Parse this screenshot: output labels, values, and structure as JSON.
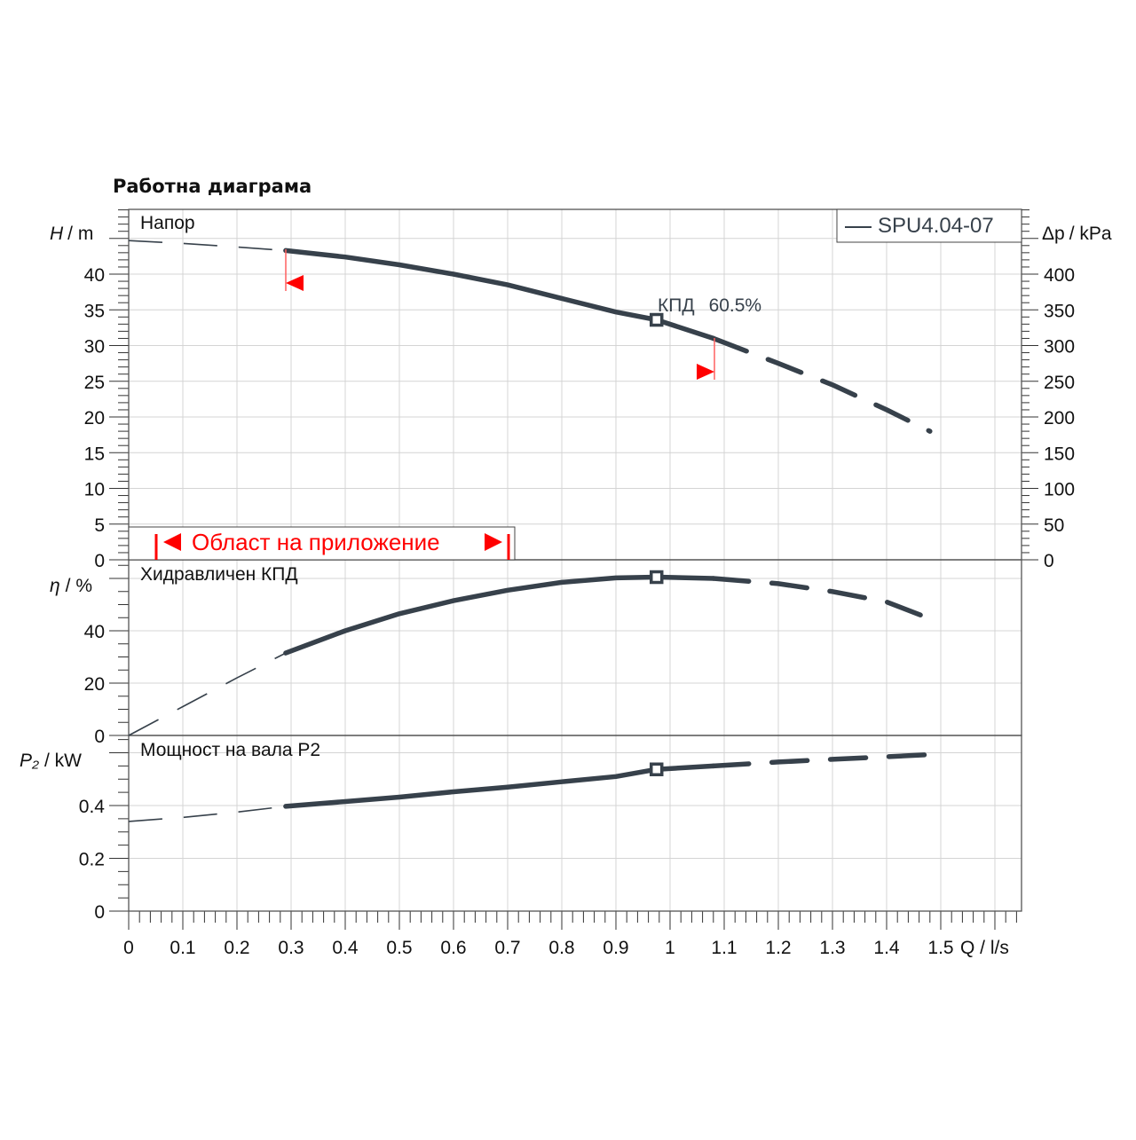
{
  "page": {
    "title": "Работна диаграма"
  },
  "legend": {
    "label": "SPU4.04-07",
    "color": "#37414b"
  },
  "annotations": {
    "efficiency_label": "КПД",
    "efficiency_value": "60.5%",
    "application_range": "Област на приложение",
    "range_color": "#ff0000"
  },
  "axes": {
    "x_label": "Q / l/s",
    "x_ticks": [
      "0",
      "0.1",
      "0.2",
      "0.3",
      "0.4",
      "0.5",
      "0.6",
      "0.7",
      "0.8",
      "0.9",
      "1",
      "1.1",
      "1.2",
      "1.3",
      "1.4",
      "1.5"
    ],
    "head": {
      "title": "Напор",
      "y_label_sym": "H",
      "y_label_unit": "/ m",
      "y_ticks": [
        "0",
        "5",
        "10",
        "15",
        "20",
        "25",
        "30",
        "35",
        "40"
      ],
      "y2_label_sym": "Δp",
      "y2_label_unit": "/ kPa",
      "y2_ticks": [
        "0",
        "50",
        "100",
        "150",
        "200",
        "250",
        "300",
        "350",
        "400"
      ]
    },
    "eff": {
      "title": "Хидравличен КПД",
      "y_label_sym": "η",
      "y_label_unit": "/ %",
      "y_ticks": [
        "0",
        "20",
        "40"
      ]
    },
    "power": {
      "title": "Мощност на вала P2",
      "y_label_sym": "P₂",
      "y_label_unit": "/ kW",
      "y_ticks": [
        "0",
        "0.2",
        "0.4"
      ]
    }
  },
  "chart_data": [
    {
      "type": "line",
      "title": "Напор",
      "xlabel": "Q / l/s",
      "ylabel": "H / m",
      "y2label": "Δp / kPa",
      "xlim": [
        0,
        1.6
      ],
      "ylim": [
        0,
        45
      ],
      "series": [
        {
          "name": "SPU4.04-07 (extrapolated, low)",
          "style": "dashed-thin",
          "x": [
            0,
            0.1,
            0.2,
            0.29
          ],
          "y": [
            44.7,
            44.3,
            43.8,
            43.3
          ]
        },
        {
          "name": "SPU4.04-07",
          "style": "solid",
          "x": [
            0.29,
            0.4,
            0.5,
            0.6,
            0.7,
            0.8,
            0.9,
            0.975,
            1.08
          ],
          "y": [
            43.3,
            42.4,
            41.3,
            40.0,
            38.5,
            36.6,
            34.7,
            33.6,
            31.0
          ]
        },
        {
          "name": "SPU4.04-07 (extrapolated, high)",
          "style": "dashed-thick",
          "x": [
            1.08,
            1.2,
            1.3,
            1.4,
            1.48
          ],
          "y": [
            31.0,
            27.5,
            24.5,
            21.0,
            18.0
          ]
        }
      ],
      "markers": [
        {
          "x": 0.975,
          "y": 33.6,
          "label": "КПД 60.5%"
        }
      ],
      "application_range": [
        0.29,
        1.08
      ]
    },
    {
      "type": "line",
      "title": "Хидравличен КПД",
      "xlabel": "Q / l/s",
      "ylabel": "η / %",
      "xlim": [
        0,
        1.6
      ],
      "ylim": [
        0,
        62
      ],
      "series": [
        {
          "name": "SPU4.04-07 (extrapolated, low)",
          "style": "dashed-thin",
          "x": [
            0,
            0.1,
            0.2,
            0.29
          ],
          "y": [
            0,
            11,
            22,
            31.5
          ]
        },
        {
          "name": "SPU4.04-07",
          "style": "solid",
          "x": [
            0.29,
            0.4,
            0.5,
            0.6,
            0.7,
            0.8,
            0.9,
            0.975,
            1.08
          ],
          "y": [
            31.5,
            40.0,
            46.5,
            51.5,
            55.5,
            58.5,
            60.2,
            60.5,
            60.0
          ]
        },
        {
          "name": "SPU4.04-07 (extrapolated, high)",
          "style": "dashed-thick",
          "x": [
            1.08,
            1.2,
            1.3,
            1.4,
            1.5
          ],
          "y": [
            60.0,
            58.0,
            55.0,
            51.0,
            43.0
          ]
        }
      ],
      "markers": [
        {
          "x": 0.975,
          "y": 60.5
        }
      ]
    },
    {
      "type": "line",
      "title": "Мощност на вала P2",
      "xlabel": "Q / l/s",
      "ylabel": "P₂ / kW",
      "xlim": [
        0,
        1.6
      ],
      "ylim": [
        0,
        0.6
      ],
      "series": [
        {
          "name": "SPU4.04-07 (extrapolated, low)",
          "style": "dashed-thin",
          "x": [
            0,
            0.1,
            0.2,
            0.29
          ],
          "y": [
            0.34,
            0.355,
            0.375,
            0.397
          ]
        },
        {
          "name": "SPU4.04-07",
          "style": "solid",
          "x": [
            0.29,
            0.4,
            0.5,
            0.6,
            0.7,
            0.8,
            0.9,
            0.975,
            1.08
          ],
          "y": [
            0.397,
            0.415,
            0.432,
            0.452,
            0.47,
            0.49,
            0.51,
            0.537,
            0.55
          ]
        },
        {
          "name": "SPU4.04-07 (extrapolated, high)",
          "style": "dashed-thick",
          "x": [
            1.08,
            1.2,
            1.3,
            1.4,
            1.5
          ],
          "y": [
            0.55,
            0.565,
            0.575,
            0.585,
            0.595
          ]
        }
      ],
      "markers": [
        {
          "x": 0.975,
          "y": 0.537
        }
      ]
    }
  ]
}
